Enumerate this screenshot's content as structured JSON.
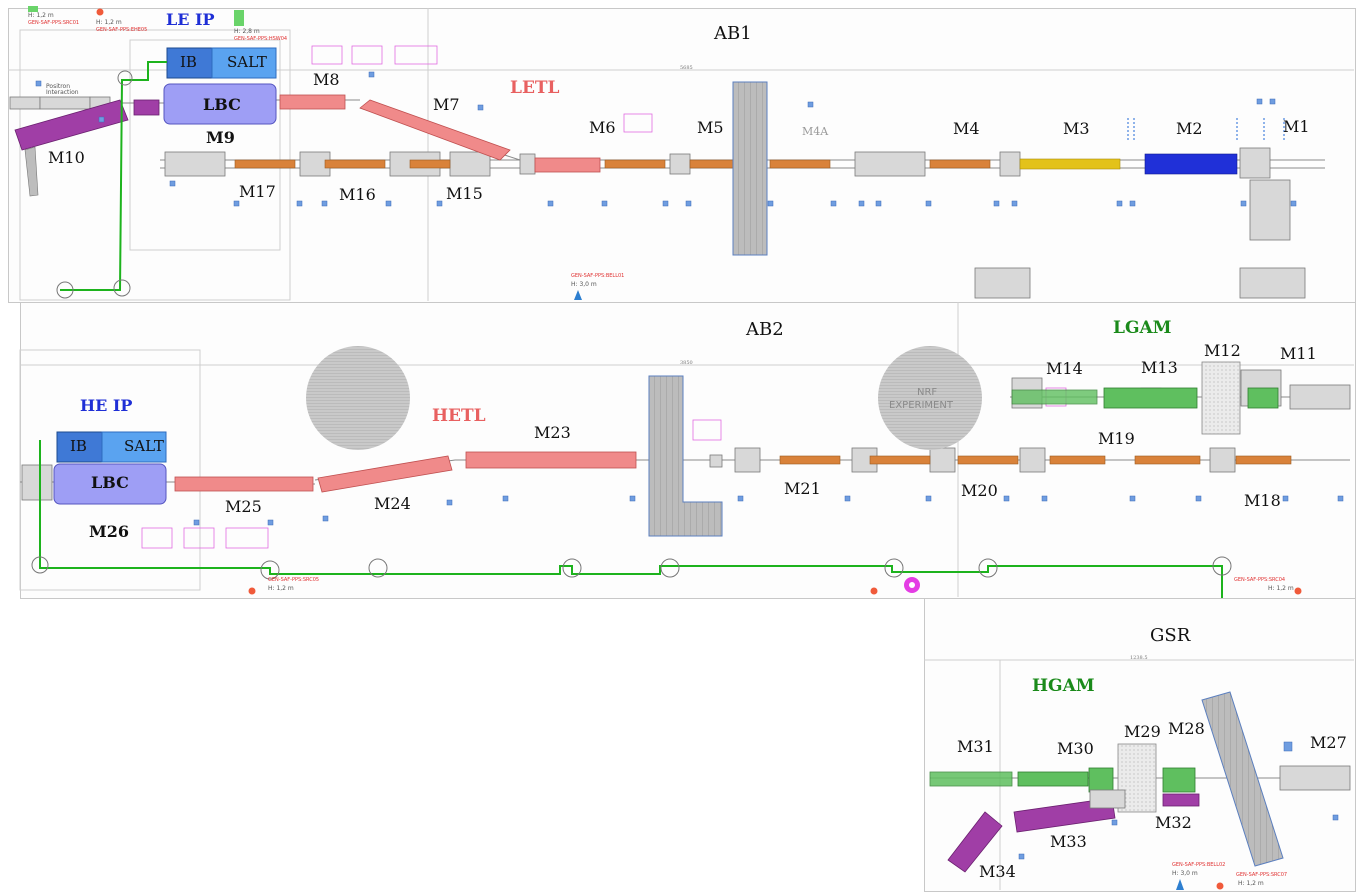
{
  "halls": {
    "ab1": "AB1",
    "ab2": "AB2",
    "gsr": "GSR"
  },
  "lines": {
    "letl": "LETL",
    "hetl": "HETL",
    "lgam": "LGAM",
    "hgam": "HGAM"
  },
  "ip": {
    "le": {
      "title": "LE IP",
      "ib": "IB",
      "salt": "SALT",
      "lbc": "LBC",
      "magnet": "M9"
    },
    "he": {
      "title": "HE IP",
      "ib": "IB",
      "salt": "SALT",
      "lbc": "LBC",
      "magnet": "M26"
    }
  },
  "modules": {
    "m1": "M1",
    "m2": "M2",
    "m3": "M3",
    "m4": "M4",
    "m5": "M5",
    "m6": "M6",
    "m7": "M7",
    "m8": "M8",
    "m10": "M10",
    "m11": "M11",
    "m12": "M12",
    "m13": "M13",
    "m14": "M14",
    "m15": "M15",
    "m16": "M16",
    "m17": "M17",
    "m18": "M18",
    "m19": "M19",
    "m20": "M20",
    "m21": "M21",
    "m23": "M23",
    "m24": "M24",
    "m25": "M25",
    "m27": "M27",
    "m28": "M28",
    "m29": "M29",
    "m30": "M30",
    "m31": "M31",
    "m32": "M32",
    "m33": "M33",
    "m34": "M34"
  },
  "experiment": {
    "line1": "NRF",
    "line2": "EXPERIMENT"
  },
  "annotations": {
    "h12a": "H: 1,2 m",
    "src01": "GEN-SAF-PPS:SRC01",
    "h12b": "H: 1,2 m",
    "ehe05": "GEN-SAF-PPS:EHE05",
    "h28": "H: 2,8 m",
    "hsw04": "GEN-SAF-PPS:HSW04",
    "bell01": "GEN-SAF-PPS:BELL01",
    "h30a": "H: 3,0 m",
    "src05": "GEN-SAF-PPS:SRC05",
    "h12c": "H: 1,2 m",
    "src04": "GEN-SAF-PPS:SRC04",
    "h12d": "H: 1,2 m",
    "bell02": "GEN-SAF-PPS:BELL02",
    "h30b": "H: 3,0 m",
    "src07": "GEN-SAF-PPS:SRC07",
    "h12e": "H: 1,2 m",
    "positron": "Positron",
    "interaction": "Interaction",
    "m4a": "M4A",
    "dim_ab1": "5685",
    "dim_ab2": "3850",
    "dim_gsr": "1238.5"
  },
  "colors": {
    "green_line": "#1db31d",
    "magenta": "#a03ea6",
    "lbc_fill": "#9e9ef5",
    "ib_fill": "#3f79d6",
    "salt_fill": "#5aa3f0",
    "red_magnet": "#f08a8a",
    "orange_magnet": "#d9823a",
    "blue_magnet": "#2030d8",
    "yellow_magnet": "#e3c21a",
    "green_module": "#5fbf5f",
    "gray_dump": "#a8a8a8"
  }
}
